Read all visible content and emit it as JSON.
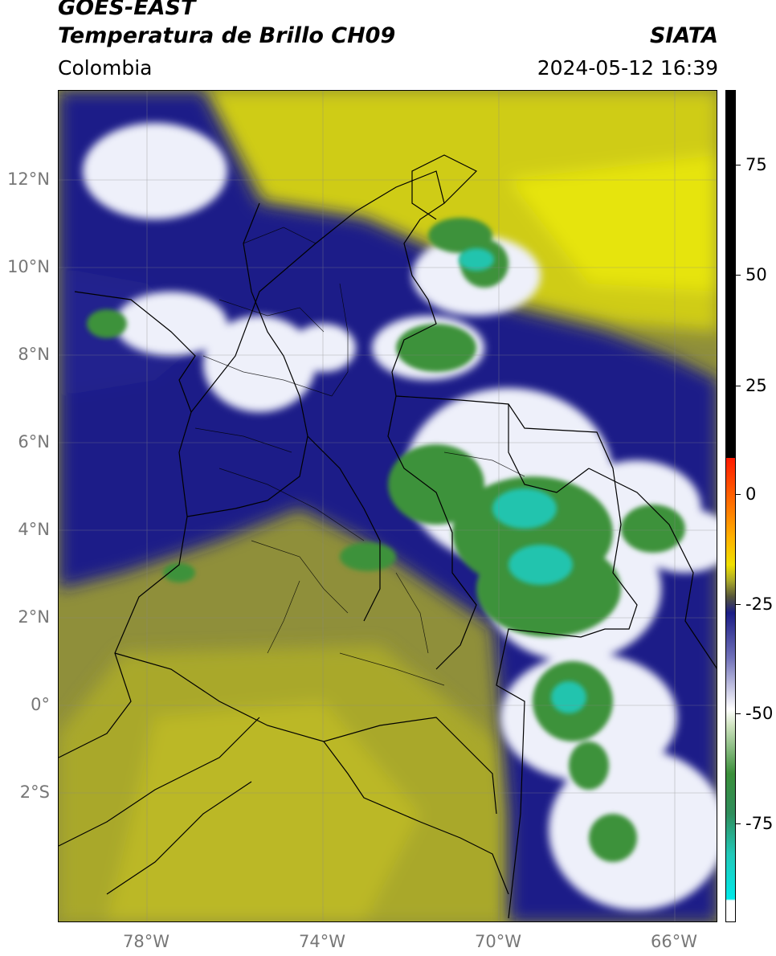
{
  "header": {
    "satellite": "GOES-EAST",
    "product": "Temperatura de Brillo CH09",
    "brand": "SIATA",
    "region": "Colombia",
    "timestamp": "2024-05-12 16:39"
  },
  "axes": {
    "lat_labels": [
      "12°N",
      "10°N",
      "8°N",
      "6°N",
      "4°N",
      "2°N",
      "0°",
      "2°S"
    ],
    "lon_labels": [
      "78°W",
      "74°W",
      "70°W",
      "66°W"
    ]
  },
  "colorbar": {
    "ticks": [
      "75",
      "50",
      "25",
      "0",
      "-25",
      "-50",
      "-75"
    ]
  },
  "colors": {
    "olive_dry": "#a7a828",
    "yellow_dry": "#e2e010",
    "dark_olive": "#6f7048",
    "navy": "#1b1d86",
    "white_cloud": "#f0f0f8",
    "green_cold": "#3b8f3a",
    "cyan_cold": "#22c7b3"
  }
}
